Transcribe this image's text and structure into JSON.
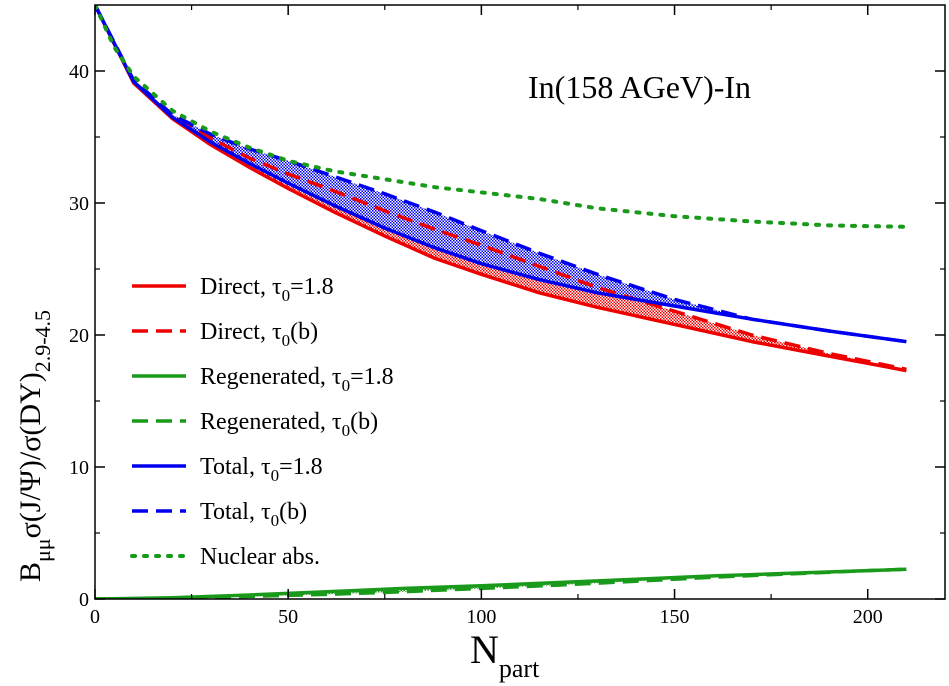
{
  "chart_data": {
    "type": "line",
    "title": "",
    "annotation": "In(158 AGeV)-In",
    "annotation_color": "#1a9a1a",
    "xlabel": {
      "main": "N",
      "sub": "part"
    },
    "ylabel": {
      "prefix": "B",
      "prefix_sub": "μμ",
      "main": "σ(J/Ψ)/σ(DY)",
      "sub": "2.9-4.5"
    },
    "xlim": [
      0,
      220
    ],
    "ylim": [
      0,
      45
    ],
    "xticks": [
      0,
      50,
      100,
      150,
      200
    ],
    "yticks": [
      0,
      10,
      20,
      30,
      40
    ],
    "grid": false,
    "legend_position": "center-left",
    "series": [
      {
        "id": "direct_tau18",
        "name": "Direct, τ",
        "tau_sub": "0",
        "tau_suffix": "=1.8",
        "color": "#ee0000",
        "dash": "solid",
        "x": [
          0,
          10,
          20,
          30,
          40,
          50,
          62,
          75,
          88,
          100,
          115,
          130,
          150,
          170,
          190,
          210
        ],
        "y": [
          45,
          39.1,
          36.4,
          34.4,
          32.7,
          31.1,
          29.3,
          27.5,
          25.8,
          24.6,
          23.2,
          22.1,
          20.8,
          19.5,
          18.4,
          17.3
        ]
      },
      {
        "id": "direct_taub",
        "name": "Direct, τ",
        "tau_sub": "0",
        "tau_suffix": "(b)",
        "color": "#ee0000",
        "dash": "dashed",
        "x": [
          0,
          10,
          20,
          30,
          40,
          50,
          62,
          75,
          88,
          100,
          115,
          130,
          150,
          170,
          190,
          210
        ],
        "y": [
          45,
          39.2,
          36.6,
          34.9,
          33.4,
          32.2,
          30.9,
          29.4,
          28.0,
          26.8,
          25.2,
          23.6,
          21.8,
          20.0,
          18.6,
          17.4
        ]
      },
      {
        "id": "regen_tau18",
        "name": "Regenerated, τ",
        "tau_sub": "0",
        "tau_suffix": "=1.8",
        "color": "#1a9a1a",
        "dash": "solid",
        "x": [
          0,
          20,
          40,
          60,
          80,
          100,
          120,
          140,
          160,
          180,
          200,
          210
        ],
        "y": [
          0.0,
          0.1,
          0.3,
          0.55,
          0.8,
          1.0,
          1.25,
          1.5,
          1.75,
          1.95,
          2.15,
          2.25
        ]
      },
      {
        "id": "regen_taub",
        "name": "Regenerated, τ",
        "tau_sub": "0",
        "tau_suffix": "(b)",
        "color": "#1a9a1a",
        "dash": "dashed",
        "x": [
          0,
          20,
          40,
          60,
          80,
          100,
          120,
          140,
          160,
          180,
          200,
          210
        ],
        "y": [
          0.0,
          0.05,
          0.2,
          0.35,
          0.55,
          0.8,
          1.05,
          1.35,
          1.65,
          1.9,
          2.15,
          2.25
        ]
      },
      {
        "id": "total_tau18",
        "name": "Total, τ",
        "tau_sub": "0",
        "tau_suffix": "=1.8",
        "color": "#0000ee",
        "dash": "solid",
        "x": [
          0,
          10,
          20,
          30,
          40,
          50,
          62,
          75,
          88,
          100,
          115,
          130,
          150,
          170,
          190,
          210
        ],
        "y": [
          45,
          39.2,
          36.5,
          34.6,
          33.0,
          31.5,
          29.8,
          28.1,
          26.6,
          25.4,
          24.2,
          23.2,
          22.2,
          21.2,
          20.3,
          19.5
        ]
      },
      {
        "id": "total_taub",
        "name": "Total, τ",
        "tau_sub": "0",
        "tau_suffix": "(b)",
        "color": "#0000ee",
        "dash": "dashed",
        "x": [
          0,
          10,
          20,
          30,
          40,
          50,
          62,
          75,
          88,
          100,
          115,
          130,
          150,
          170,
          190,
          210
        ],
        "y": [
          45,
          39.3,
          36.7,
          35.2,
          34.1,
          33.2,
          32.0,
          30.7,
          29.3,
          27.9,
          26.2,
          24.6,
          22.7,
          21.2,
          20.3,
          19.5
        ]
      },
      {
        "id": "nuclear_abs",
        "name": "Nuclear abs.",
        "tau_sub": "",
        "tau_suffix": "",
        "color": "#1a9a1a",
        "dash": "dotted",
        "x": [
          0,
          5,
          10,
          20,
          30,
          40,
          50,
          62,
          75,
          88,
          100,
          115,
          130,
          150,
          170,
          190,
          210
        ],
        "y": [
          45,
          41.8,
          39.6,
          37.0,
          35.4,
          34.2,
          33.2,
          32.4,
          31.8,
          31.2,
          30.8,
          30.3,
          29.6,
          29.0,
          28.6,
          28.3,
          28.2
        ]
      }
    ],
    "bands": [
      {
        "between": [
          "direct_tau18",
          "direct_taub"
        ],
        "color": "#ee0000"
      },
      {
        "between": [
          "total_tau18",
          "total_taub"
        ],
        "color": "#0000ee"
      },
      {
        "between": [
          "regen_taub",
          "regen_tau18"
        ],
        "color": "#1a9a1a"
      }
    ]
  }
}
